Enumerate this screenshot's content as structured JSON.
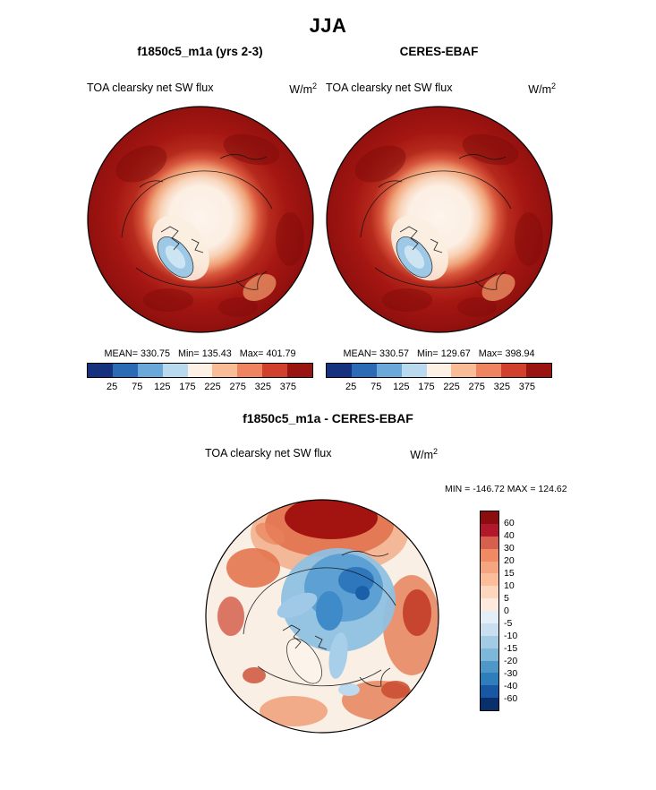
{
  "header": {
    "season": "JJA"
  },
  "panels": [
    {
      "title": "f1850c5_m1a (yrs 2-3)",
      "field_label": "TOA clearsky net SW flux",
      "units_base": "W/m",
      "units_exp": "2",
      "stats": {
        "mean": "MEAN= 330.75",
        "min": "Min= 135.43",
        "max": "Max= 401.79"
      }
    },
    {
      "title": "CERES-EBAF",
      "field_label": "TOA clearsky net SW flux",
      "units_base": "W/m",
      "units_exp": "2",
      "stats": {
        "mean": "MEAN= 330.57",
        "min": "Min= 129.67",
        "max": "Max= 398.94"
      }
    }
  ],
  "diff": {
    "title": "f1850c5_m1a - CERES-EBAF",
    "field_label": "TOA clearsky net SW flux",
    "units_base": "W/m",
    "units_exp": "2",
    "minmax": "MIN = -146.72 MAX = 124.62"
  },
  "chart_data": [
    {
      "type": "heatmap",
      "title": "f1850c5_m1a (yrs 2-3)",
      "subtitle": "TOA clearsky net SW flux",
      "season": "JJA",
      "units": "W/m^2",
      "projection": "north-polar-stereographic",
      "stats": {
        "mean": 330.75,
        "min": 135.43,
        "max": 401.79
      },
      "description": "High flux (dark red, ~325-400) over high-latitude land and ocean; pale low values (~200-250) over central Arctic sea ice; local minimum (light blue, ~135-175) over Greenland.",
      "colorbar": {
        "orientation": "horizontal",
        "ticks": [
          25,
          75,
          125,
          175,
          225,
          275,
          325,
          375
        ],
        "colors": [
          "#16317d",
          "#2b6bb5",
          "#69a8d9",
          "#b9d9ee",
          "#fdf0e4",
          "#f8bd96",
          "#ee8460",
          "#d0402c",
          "#991511"
        ]
      }
    },
    {
      "type": "heatmap",
      "title": "CERES-EBAF",
      "subtitle": "TOA clearsky net SW flux",
      "season": "JJA",
      "units": "W/m^2",
      "projection": "north-polar-stereographic",
      "stats": {
        "mean": 330.57,
        "min": 129.67,
        "max": 398.94
      },
      "description": "Observed pattern closely matching the model: dark red maximum around the periphery, pale central Arctic, light-blue minimum over Greenland.",
      "colorbar": {
        "orientation": "horizontal",
        "ticks": [
          25,
          75,
          125,
          175,
          225,
          275,
          325,
          375
        ],
        "colors": [
          "#16317d",
          "#2b6bb5",
          "#69a8d9",
          "#b9d9ee",
          "#fdf0e4",
          "#f8bd96",
          "#ee8460",
          "#d0402c",
          "#991511"
        ]
      }
    },
    {
      "type": "heatmap",
      "title": "f1850c5_m1a - CERES-EBAF",
      "subtitle": "TOA clearsky net SW flux",
      "season": "JJA",
      "units": "W/m^2",
      "projection": "north-polar-stereographic",
      "stats": {
        "min": -146.72,
        "max": 124.62
      },
      "description": "Model minus observations: strong negative (blue) differences over the central Arctic Ocean, positive (red/orange) differences near the top of the domain, over surrounding land and ocean edges.",
      "colorbar": {
        "orientation": "vertical",
        "ticks": [
          60,
          40,
          30,
          20,
          15,
          10,
          5,
          0,
          -5,
          -10,
          -15,
          -20,
          -30,
          -40,
          -60
        ],
        "colors": [
          "#8b0d0d",
          "#b2182b",
          "#d6604d",
          "#ef8a62",
          "#f5a57f",
          "#fbbd9a",
          "#fcd7bd",
          "#fdeadd",
          "#e3eef7",
          "#c9dff0",
          "#a4cbe4",
          "#7db8da",
          "#4f97c9",
          "#2e7ebc",
          "#1857a4",
          "#0a306b"
        ]
      }
    }
  ]
}
